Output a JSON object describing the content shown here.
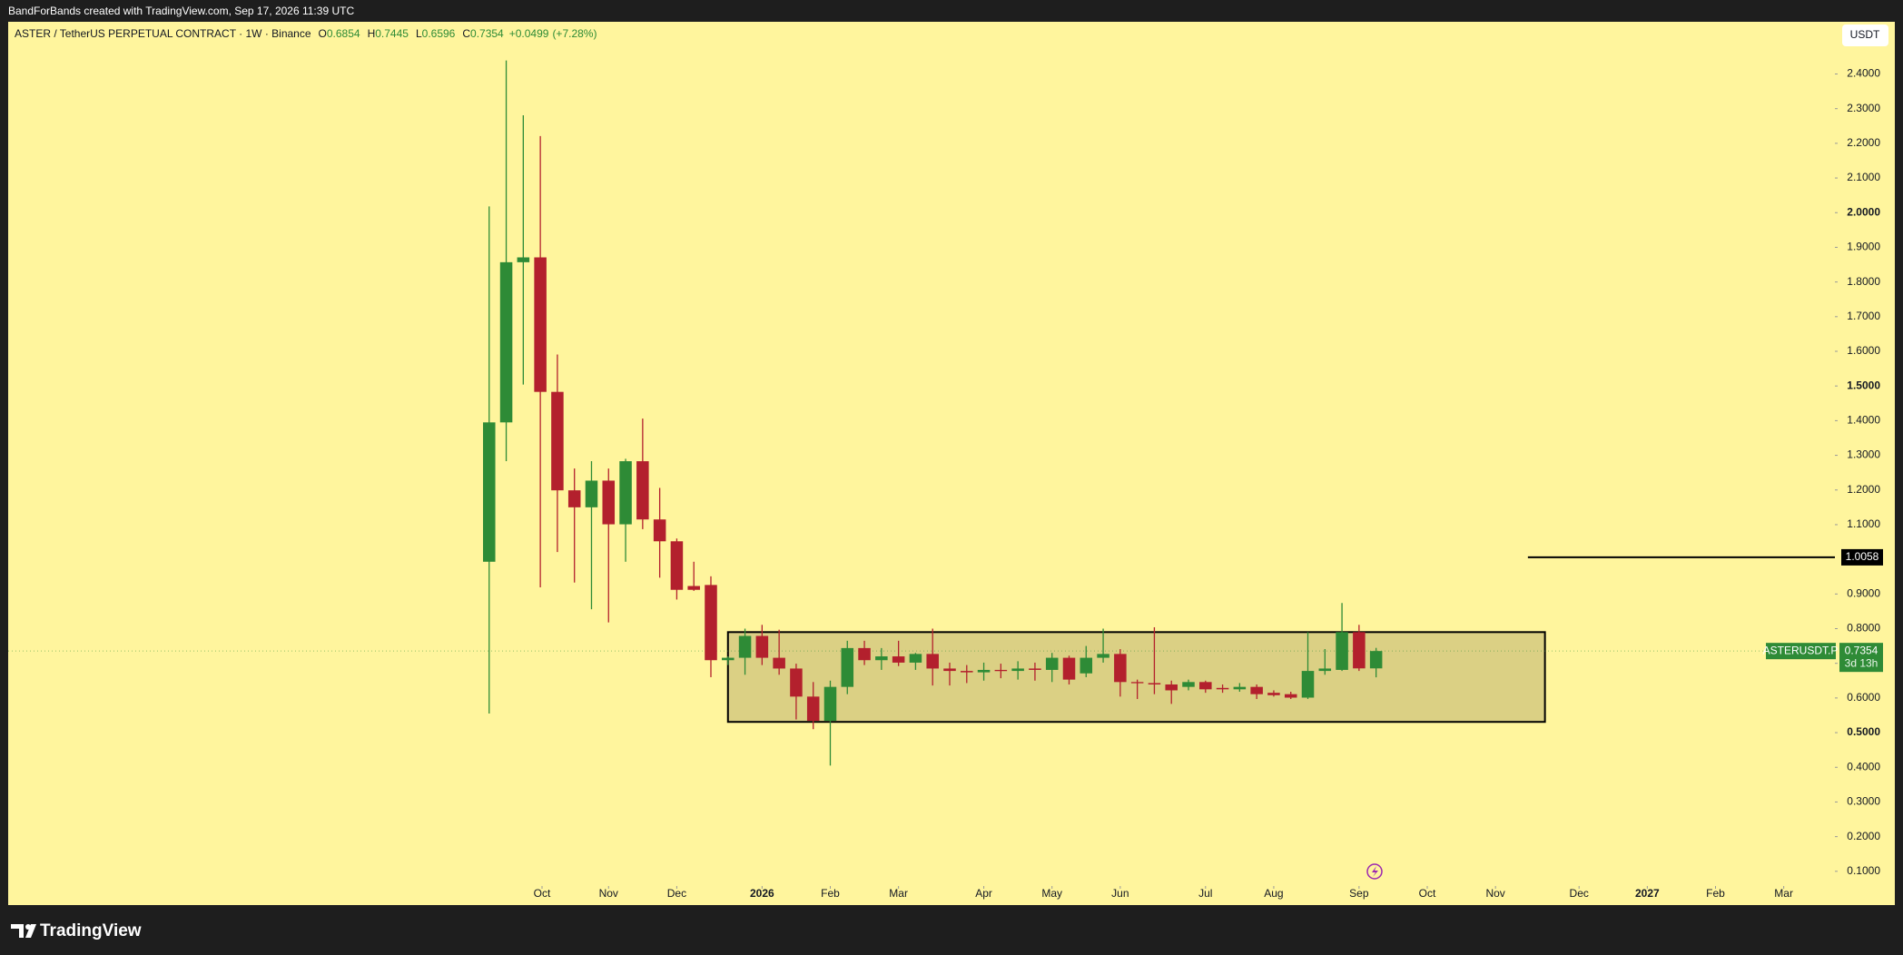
{
  "header": {
    "attribution": "BandForBands created with TradingView.com, Sep 17, 2026 11:39 UTC"
  },
  "chart_data": {
    "type": "candlestick",
    "title": "ASTER / TetherUS PERPETUAL CONTRACT · 1W · Binance",
    "ohlc_labels": [
      "O",
      "H",
      "L",
      "C"
    ],
    "change": {
      "value": 0.0499,
      "label": "+0.0499"
    },
    "change_pct": {
      "value": 7.28,
      "label": "(+7.28%)"
    },
    "currency": "USDT",
    "symbol": "ASTERUSDT.P",
    "countdown": "3d 13h",
    "up_color": "#2e8b36",
    "down_color": "#b3202d",
    "open": [
      0.993,
      1.395,
      1.857,
      1.871,
      1.483,
      1.199,
      1.15,
      1.227,
      1.101,
      1.283,
      1.115,
      1.052,
      0.923,
      0.926,
      0.709,
      0.716,
      0.779,
      0.716,
      0.685,
      0.604,
      0.534,
      0.632,
      0.744,
      0.709,
      0.72,
      0.702,
      0.727,
      0.685,
      0.678,
      0.674,
      0.681,
      0.678,
      0.685,
      0.681,
      0.716,
      0.671,
      0.716,
      0.727,
      0.646,
      0.643,
      0.639,
      0.632,
      0.646,
      0.629,
      0.625,
      0.632,
      0.615,
      0.611,
      0.601,
      0.678,
      0.681,
      0.79,
      0.6854
    ],
    "high": [
      2.018,
      2.439,
      2.281,
      2.221,
      1.591,
      1.262,
      1.283,
      1.262,
      1.29,
      1.406,
      1.206,
      1.06,
      0.993,
      0.951,
      0.72,
      0.8,
      0.811,
      0.797,
      0.699,
      0.646,
      0.65,
      0.765,
      0.765,
      0.744,
      0.765,
      0.73,
      0.8,
      0.702,
      0.695,
      0.702,
      0.699,
      0.706,
      0.702,
      0.73,
      0.722,
      0.75,
      0.8,
      0.741,
      0.653,
      0.804,
      0.65,
      0.653,
      0.65,
      0.639,
      0.643,
      0.639,
      0.622,
      0.618,
      0.79,
      0.741,
      0.874,
      0.811,
      0.7445
    ],
    "low": [
      0.555,
      1.283,
      1.504,
      0.919,
      1.021,
      0.933,
      0.856,
      0.818,
      0.993,
      1.087,
      0.947,
      0.884,
      0.909,
      0.66,
      0.695,
      0.667,
      0.695,
      0.667,
      0.538,
      0.51,
      0.405,
      0.611,
      0.695,
      0.681,
      0.692,
      0.681,
      0.636,
      0.636,
      0.643,
      0.65,
      0.657,
      0.653,
      0.65,
      0.646,
      0.639,
      0.66,
      0.702,
      0.604,
      0.597,
      0.611,
      0.583,
      0.622,
      0.615,
      0.615,
      0.618,
      0.597,
      0.604,
      0.597,
      0.597,
      0.667,
      0.678,
      0.678,
      0.6596
    ],
    "close": [
      1.395,
      1.857,
      1.871,
      1.483,
      1.199,
      1.15,
      1.227,
      1.101,
      1.283,
      1.115,
      1.052,
      0.912,
      0.912,
      0.709,
      0.716,
      0.779,
      0.716,
      0.685,
      0.604,
      0.534,
      0.632,
      0.744,
      0.709,
      0.72,
      0.702,
      0.727,
      0.685,
      0.678,
      0.674,
      0.681,
      0.678,
      0.685,
      0.681,
      0.716,
      0.653,
      0.716,
      0.727,
      0.646,
      0.643,
      0.639,
      0.622,
      0.646,
      0.625,
      0.625,
      0.632,
      0.611,
      0.608,
      0.601,
      0.678,
      0.685,
      0.79,
      0.6854,
      0.7354
    ],
    "xlim": [
      -28.2,
      78.9
    ],
    "xticks": [
      {
        "value": 3.1,
        "label": "Oct"
      },
      {
        "value": 7.0,
        "label": "Nov"
      },
      {
        "value": 11.0,
        "label": "Dec"
      },
      {
        "value": 16.0,
        "label": "2026"
      },
      {
        "value": 20.0,
        "label": "Feb"
      },
      {
        "value": 24.0,
        "label": "Mar"
      },
      {
        "value": 29.0,
        "label": "Apr"
      },
      {
        "value": 33.0,
        "label": "May"
      },
      {
        "value": 37.0,
        "label": "Jun"
      },
      {
        "value": 42.0,
        "label": "Jul"
      },
      {
        "value": 46.0,
        "label": "Aug"
      },
      {
        "value": 51.0,
        "label": "Sep"
      },
      {
        "value": 55.0,
        "label": "Oct"
      },
      {
        "value": 59.0,
        "label": "Nov"
      },
      {
        "value": 63.9,
        "label": "Dec"
      },
      {
        "value": 67.9,
        "label": "2027"
      },
      {
        "value": 71.9,
        "label": "Feb"
      },
      {
        "value": 75.9,
        "label": "Mar"
      }
    ],
    "ylim": [
      0.0576,
      2.5506
    ],
    "yticks": [
      {
        "value": 0.1,
        "label": "0.1000"
      },
      {
        "value": 0.2,
        "label": "0.2000"
      },
      {
        "value": 0.3,
        "label": "0.3000"
      },
      {
        "value": 0.4,
        "label": "0.4000"
      },
      {
        "value": 0.5,
        "label": "0.5000"
      },
      {
        "value": 0.6,
        "label": "0.6000"
      },
      {
        "value": 0.7,
        "label": "0.7000"
      },
      {
        "value": 0.8,
        "label": "0.8000"
      },
      {
        "value": 0.9,
        "label": "0.9000"
      },
      {
        "value": 1.1,
        "label": "1.1000"
      },
      {
        "value": 1.2,
        "label": "1.2000"
      },
      {
        "value": 1.3,
        "label": "1.3000"
      },
      {
        "value": 1.4,
        "label": "1.4000"
      },
      {
        "value": 1.5,
        "label": "1.5000"
      },
      {
        "value": 1.6,
        "label": "1.6000"
      },
      {
        "value": 1.7,
        "label": "1.7000"
      },
      {
        "value": 1.8,
        "label": "1.8000"
      },
      {
        "value": 1.9,
        "label": "1.9000"
      },
      {
        "value": 2.0,
        "label": "2.0000"
      },
      {
        "value": 2.1,
        "label": "2.1000"
      },
      {
        "value": 2.2,
        "label": "2.2000"
      },
      {
        "value": 2.3,
        "label": "2.3000"
      },
      {
        "value": 2.4,
        "label": "2.4000"
      }
    ],
    "price_line": {
      "value": 1.0058,
      "x_start": 60.9
    },
    "rectangle": {
      "x": [
        14.0,
        61.9
      ],
      "y": [
        0.531,
        0.79
      ]
    }
  },
  "footer": {
    "logo": "TradingView"
  }
}
